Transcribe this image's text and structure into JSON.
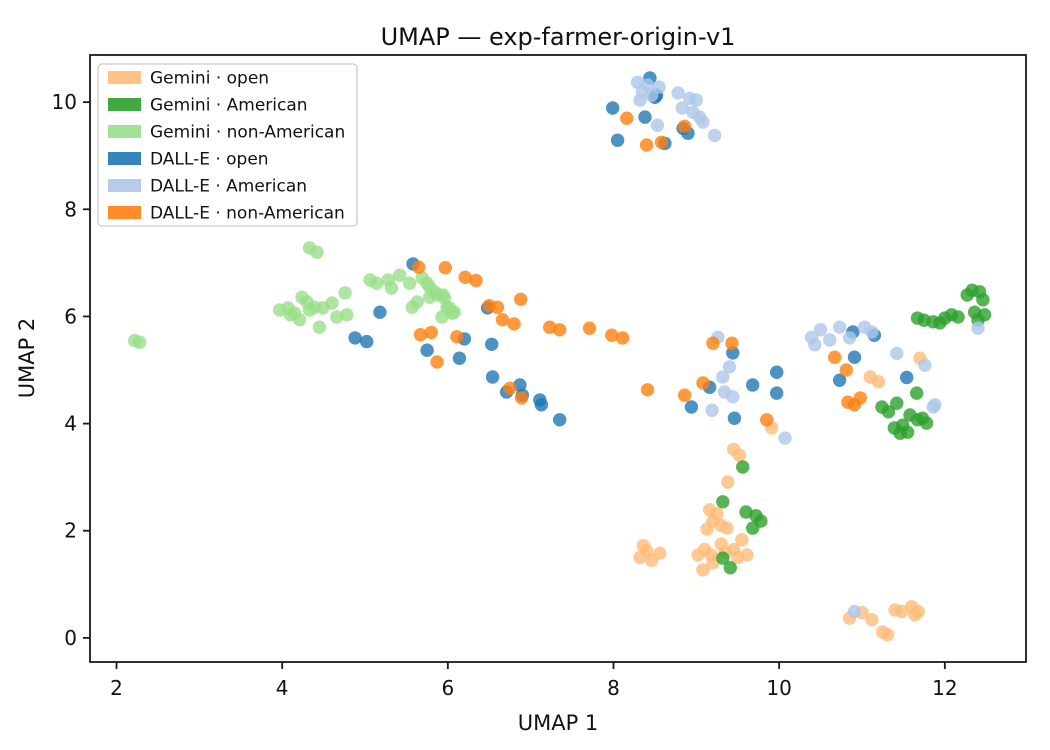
{
  "title": "UMAP — exp-farmer-origin-v1",
  "xlabel": "UMAP 1",
  "ylabel": "UMAP 2",
  "chart_data": {
    "type": "scatter",
    "title": "UMAP — exp-farmer-origin-v1",
    "xlabel": "UMAP 1",
    "ylabel": "UMAP 2",
    "xlim": [
      1.68,
      12.98
    ],
    "ylim": [
      -0.45,
      10.88
    ],
    "xticks": [
      2,
      4,
      6,
      8,
      10,
      12
    ],
    "yticks": [
      0,
      2,
      4,
      6,
      8,
      10
    ],
    "grid": false,
    "legend_position": "upper left",
    "marker": {
      "radius": 6.7,
      "opacity": 0.8
    },
    "series": [
      {
        "name": "Gemini · open",
        "color": "#FFBB78",
        "points": [
          [
            9.45,
            3.52
          ],
          [
            9.52,
            3.41
          ],
          [
            9.38,
            2.91
          ],
          [
            9.16,
            2.39
          ],
          [
            9.25,
            2.32
          ],
          [
            9.2,
            2.18
          ],
          [
            9.3,
            2.1
          ],
          [
            9.37,
            2.05
          ],
          [
            9.13,
            2.03
          ],
          [
            9.02,
            1.55
          ],
          [
            9.1,
            1.65
          ],
          [
            9.18,
            1.55
          ],
          [
            9.2,
            1.4
          ],
          [
            9.3,
            1.75
          ],
          [
            9.35,
            1.6
          ],
          [
            9.45,
            1.65
          ],
          [
            9.5,
            1.5
          ],
          [
            9.55,
            1.83
          ],
          [
            9.61,
            1.55
          ],
          [
            9.08,
            1.27
          ],
          [
            8.32,
            1.5
          ],
          [
            8.4,
            1.63
          ],
          [
            8.46,
            1.45
          ],
          [
            8.56,
            1.58
          ],
          [
            8.36,
            1.72
          ],
          [
            10.85,
            0.37
          ],
          [
            11.0,
            0.47
          ],
          [
            11.12,
            0.34
          ],
          [
            11.25,
            0.11
          ],
          [
            11.31,
            0.06
          ],
          [
            11.4,
            0.52
          ],
          [
            11.48,
            0.49
          ],
          [
            11.6,
            0.58
          ],
          [
            11.64,
            0.43
          ],
          [
            11.68,
            0.49
          ],
          [
            11.7,
            5.22
          ],
          [
            11.1,
            4.87
          ],
          [
            11.2,
            4.78
          ],
          [
            9.91,
            3.92
          ]
        ]
      },
      {
        "name": "Gemini · American",
        "color": "#2CA02C",
        "points": [
          [
            9.56,
            3.19
          ],
          [
            9.32,
            2.54
          ],
          [
            9.6,
            2.35
          ],
          [
            9.72,
            2.28
          ],
          [
            9.78,
            2.18
          ],
          [
            9.68,
            2.05
          ],
          [
            9.32,
            1.49
          ],
          [
            9.41,
            1.31
          ],
          [
            11.67,
            5.97
          ],
          [
            11.75,
            5.93
          ],
          [
            11.86,
            5.9
          ],
          [
            11.94,
            5.88
          ],
          [
            12.0,
            5.97
          ],
          [
            12.08,
            6.03
          ],
          [
            12.16,
            5.99
          ],
          [
            12.27,
            6.4
          ],
          [
            12.33,
            6.49
          ],
          [
            12.42,
            6.46
          ],
          [
            12.46,
            6.31
          ],
          [
            12.48,
            6.03
          ],
          [
            12.36,
            6.08
          ],
          [
            12.4,
            5.93
          ],
          [
            11.24,
            4.31
          ],
          [
            11.32,
            4.22
          ],
          [
            11.42,
            4.38
          ],
          [
            11.66,
            4.57
          ],
          [
            11.58,
            4.16
          ],
          [
            11.67,
            4.07
          ],
          [
            11.49,
            3.97
          ],
          [
            11.39,
            3.92
          ],
          [
            11.46,
            3.82
          ],
          [
            11.55,
            3.84
          ],
          [
            11.73,
            4.1
          ],
          [
            11.78,
            4.01
          ]
        ]
      },
      {
        "name": "Gemini · non-American",
        "color": "#98DF8A",
        "points": [
          [
            2.22,
            5.55
          ],
          [
            2.28,
            5.52
          ],
          [
            4.33,
            7.28
          ],
          [
            4.42,
            7.2
          ],
          [
            3.97,
            6.12
          ],
          [
            4.07,
            6.16
          ],
          [
            4.15,
            6.06
          ],
          [
            4.24,
            6.36
          ],
          [
            4.3,
            6.27
          ],
          [
            4.33,
            6.12
          ],
          [
            4.39,
            6.17
          ],
          [
            4.45,
            5.8
          ],
          [
            4.49,
            6.16
          ],
          [
            4.6,
            6.25
          ],
          [
            4.66,
            5.99
          ],
          [
            4.76,
            6.44
          ],
          [
            4.78,
            6.03
          ],
          [
            4.1,
            6.03
          ],
          [
            4.21,
            5.94
          ],
          [
            5.06,
            6.68
          ],
          [
            5.14,
            6.62
          ],
          [
            5.28,
            6.68
          ],
          [
            5.32,
            6.53
          ],
          [
            5.42,
            6.77
          ],
          [
            5.54,
            6.62
          ],
          [
            5.63,
            6.27
          ],
          [
            5.57,
            6.17
          ],
          [
            5.69,
            6.72
          ],
          [
            5.75,
            6.62
          ],
          [
            5.78,
            6.36
          ],
          [
            5.84,
            6.46
          ],
          [
            5.94,
            6.4
          ],
          [
            5.99,
            6.17
          ],
          [
            6.05,
            6.06
          ],
          [
            5.78,
            6.55
          ],
          [
            5.87,
            6.4
          ],
          [
            5.96,
            6.34
          ],
          [
            6.02,
            6.16
          ],
          [
            5.93,
            5.99
          ],
          [
            6.08,
            6.08
          ]
        ]
      },
      {
        "name": "DALL-E · open",
        "color": "#1F77B4",
        "points": [
          [
            8.44,
            10.45
          ],
          [
            8.5,
            10.09
          ],
          [
            8.52,
            10.13
          ],
          [
            7.99,
            9.89
          ],
          [
            8.38,
            9.72
          ],
          [
            8.84,
            9.51
          ],
          [
            8.9,
            9.42
          ],
          [
            8.05,
            9.29
          ],
          [
            8.62,
            9.23
          ],
          [
            5.58,
            6.98
          ],
          [
            5.18,
            6.08
          ],
          [
            6.48,
            6.16
          ],
          [
            4.88,
            5.6
          ],
          [
            5.02,
            5.53
          ],
          [
            5.75,
            5.37
          ],
          [
            6.2,
            5.58
          ],
          [
            6.14,
            5.22
          ],
          [
            6.53,
            5.48
          ],
          [
            6.54,
            4.87
          ],
          [
            6.71,
            4.59
          ],
          [
            6.87,
            4.72
          ],
          [
            6.9,
            4.53
          ],
          [
            7.11,
            4.44
          ],
          [
            7.13,
            4.35
          ],
          [
            7.35,
            4.07
          ],
          [
            9.44,
            5.32
          ],
          [
            9.16,
            4.68
          ],
          [
            8.94,
            4.31
          ],
          [
            9.46,
            4.1
          ],
          [
            9.68,
            4.72
          ],
          [
            9.97,
            4.96
          ],
          [
            9.97,
            4.57
          ],
          [
            10.89,
            5.71
          ],
          [
            11.15,
            5.65
          ],
          [
            10.91,
            5.24
          ],
          [
            10.73,
            4.81
          ],
          [
            11.54,
            4.86
          ]
        ]
      },
      {
        "name": "DALL-E · American",
        "color": "#AEC7E8",
        "points": [
          [
            8.29,
            10.37
          ],
          [
            8.41,
            10.32
          ],
          [
            8.35,
            10.2
          ],
          [
            8.55,
            10.28
          ],
          [
            8.46,
            10.13
          ],
          [
            8.32,
            10.04
          ],
          [
            8.78,
            10.17
          ],
          [
            8.92,
            10.07
          ],
          [
            9.0,
            10.04
          ],
          [
            8.83,
            9.89
          ],
          [
            8.96,
            9.81
          ],
          [
            9.04,
            9.72
          ],
          [
            9.08,
            9.63
          ],
          [
            8.53,
            9.57
          ],
          [
            9.22,
            9.38
          ],
          [
            9.26,
            5.61
          ],
          [
            9.4,
            5.06
          ],
          [
            9.32,
            4.87
          ],
          [
            9.34,
            4.59
          ],
          [
            9.44,
            4.5
          ],
          [
            9.19,
            4.25
          ],
          [
            10.07,
            3.73
          ],
          [
            10.39,
            5.61
          ],
          [
            10.43,
            5.47
          ],
          [
            10.5,
            5.75
          ],
          [
            10.61,
            5.56
          ],
          [
            10.73,
            5.8
          ],
          [
            10.85,
            5.6
          ],
          [
            11.03,
            5.8
          ],
          [
            11.12,
            5.71
          ],
          [
            11.42,
            5.31
          ],
          [
            11.76,
            5.09
          ],
          [
            11.88,
            4.35
          ],
          [
            11.86,
            4.31
          ],
          [
            12.4,
            5.78
          ],
          [
            10.91,
            0.49
          ]
        ]
      },
      {
        "name": "DALL-E · non-American",
        "color": "#FF7F0E",
        "points": [
          [
            5.65,
            6.92
          ],
          [
            5.97,
            6.91
          ],
          [
            6.21,
            6.73
          ],
          [
            6.34,
            6.67
          ],
          [
            6.5,
            6.2
          ],
          [
            6.6,
            6.17
          ],
          [
            6.88,
            6.32
          ],
          [
            6.66,
            5.94
          ],
          [
            6.8,
            5.86
          ],
          [
            7.23,
            5.8
          ],
          [
            7.35,
            5.75
          ],
          [
            7.71,
            5.78
          ],
          [
            7.98,
            5.65
          ],
          [
            8.11,
            5.6
          ],
          [
            5.67,
            5.66
          ],
          [
            5.8,
            5.7
          ],
          [
            6.11,
            5.62
          ],
          [
            5.87,
            5.15
          ],
          [
            6.75,
            4.66
          ],
          [
            6.89,
            4.48
          ],
          [
            8.41,
            4.63
          ],
          [
            8.16,
            9.7
          ],
          [
            8.4,
            9.2
          ],
          [
            8.58,
            9.25
          ],
          [
            8.86,
            9.55
          ],
          [
            9.2,
            5.5
          ],
          [
            9.43,
            5.5
          ],
          [
            9.08,
            4.76
          ],
          [
            8.86,
            4.53
          ],
          [
            9.85,
            4.07
          ],
          [
            10.67,
            5.24
          ],
          [
            10.81,
            5.0
          ],
          [
            10.83,
            4.4
          ],
          [
            10.91,
            4.35
          ],
          [
            10.98,
            4.48
          ]
        ]
      }
    ]
  }
}
